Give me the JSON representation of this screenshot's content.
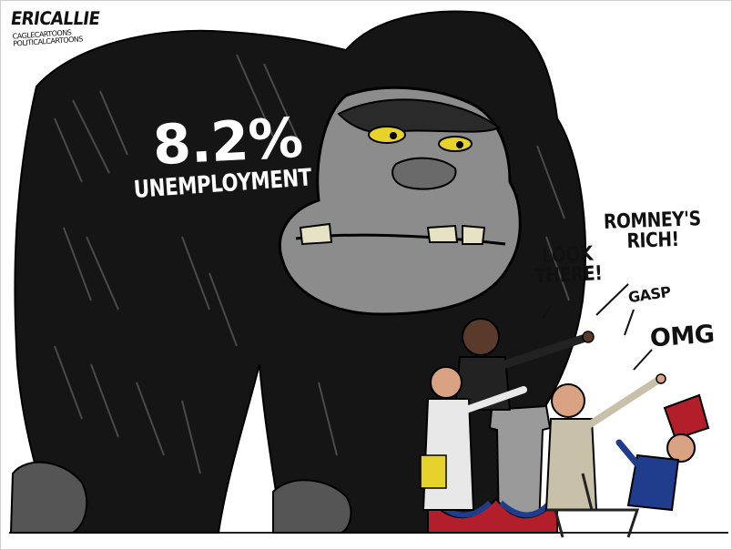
{
  "cartoon": {
    "signature": "ERICALLIE",
    "credit_line1": "CAGLECARTOONS",
    "credit_line2": "POLITICALCARTOONS",
    "gorilla_label_value": "8.2%",
    "gorilla_label_text": "UNEMPLOYMENT",
    "speech": {
      "look_line1": "LOOK",
      "look_line2": "THERE!",
      "romney_line1": "ROMNEY'S",
      "romney_line2": "RICH!",
      "gasp": "GASP",
      "omg": "OMG"
    },
    "colors": {
      "gorilla_fur": "#151515",
      "gorilla_face": "#8c8c8c",
      "teeth": "#e8e2c4",
      "eye": "#e6d22a",
      "skin": "#d9a383",
      "bunting_red": "#b21f2a",
      "bunting_blue": "#1f3d8c"
    }
  }
}
